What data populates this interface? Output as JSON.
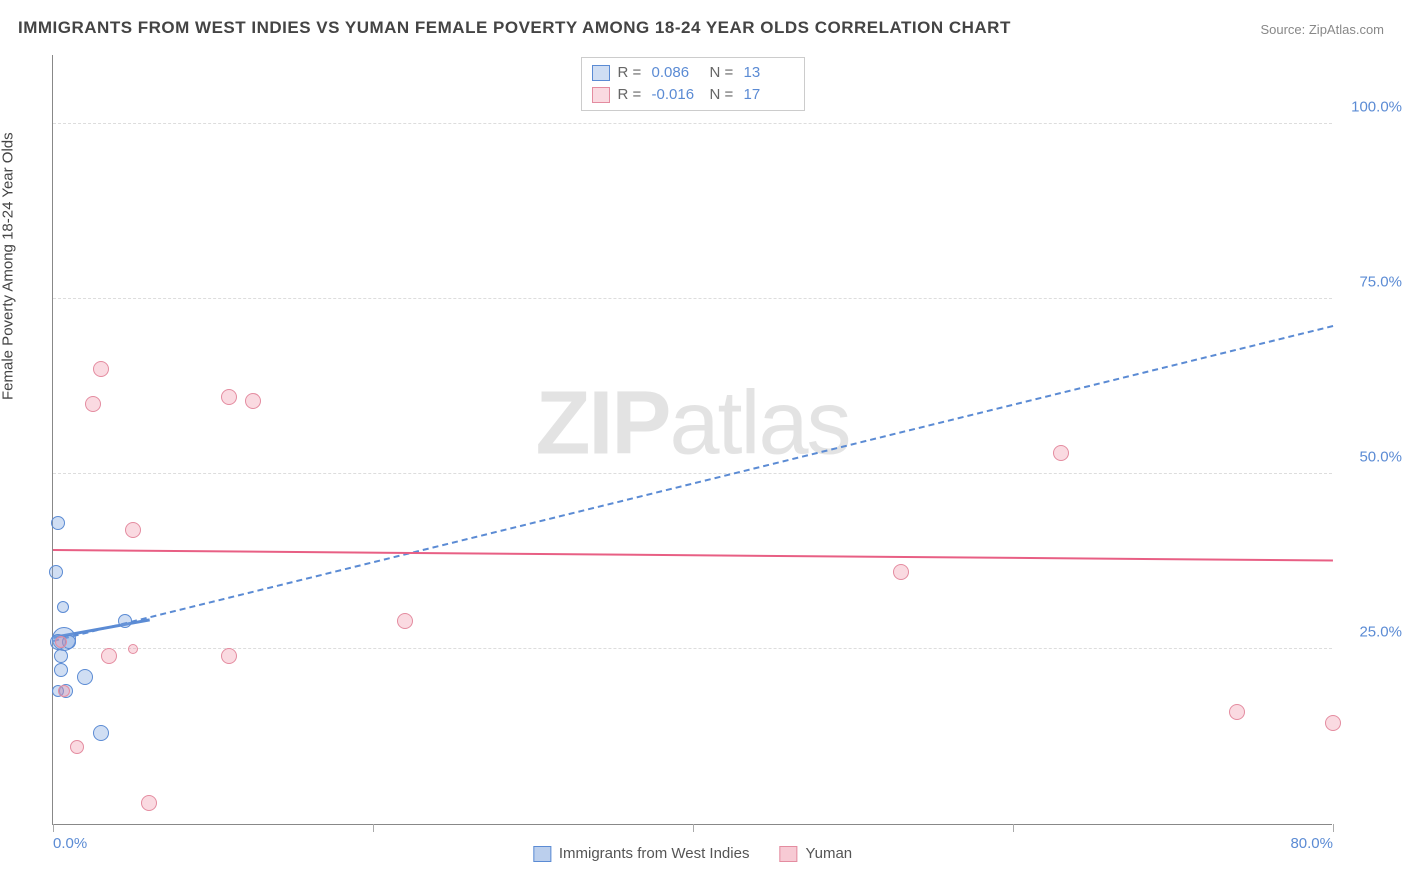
{
  "title": "IMMIGRANTS FROM WEST INDIES VS YUMAN FEMALE POVERTY AMONG 18-24 YEAR OLDS CORRELATION CHART",
  "source": "Source: ZipAtlas.com",
  "y_axis_label": "Female Poverty Among 18-24 Year Olds",
  "watermark_bold": "ZIP",
  "watermark_rest": "atlas",
  "chart": {
    "type": "scatter-correlation",
    "xlim": [
      0,
      80
    ],
    "ylim": [
      0,
      110
    ],
    "x_ticks": [
      0,
      20,
      40,
      60,
      80
    ],
    "x_tick_labels": [
      "0.0%",
      "",
      "",
      "",
      "80.0%"
    ],
    "y_ticks": [
      25,
      50,
      75,
      100
    ],
    "y_tick_labels": [
      "25.0%",
      "50.0%",
      "75.0%",
      "100.0%"
    ],
    "grid_color": "#dddddd",
    "axis_color": "#888888",
    "tick_label_color": "#5b8bd4",
    "background_color": "#ffffff",
    "series": [
      {
        "name": "Immigrants from West Indies",
        "fill": "rgba(120,160,220,0.35)",
        "stroke": "#5b8bd4",
        "r_value": "0.086",
        "n_value": "13",
        "trend": {
          "y_at_x0": 26,
          "y_at_x80": 71,
          "dashed": true,
          "solid_segment": {
            "x0": 0,
            "y0": 26.5,
            "x1": 6,
            "y1": 29
          },
          "color": "#5b8bd4",
          "width": 2
        },
        "points": [
          {
            "x": 0.3,
            "y": 43,
            "r": 7
          },
          {
            "x": 0.2,
            "y": 36,
            "r": 7
          },
          {
            "x": 0.7,
            "y": 26.5,
            "r": 12
          },
          {
            "x": 0.3,
            "y": 26,
            "r": 8
          },
          {
            "x": 0.5,
            "y": 24,
            "r": 7
          },
          {
            "x": 0.5,
            "y": 22,
            "r": 7
          },
          {
            "x": 4.5,
            "y": 29,
            "r": 7
          },
          {
            "x": 2.0,
            "y": 21,
            "r": 8
          },
          {
            "x": 0.8,
            "y": 19,
            "r": 7
          },
          {
            "x": 0.3,
            "y": 19,
            "r": 6
          },
          {
            "x": 3.0,
            "y": 13,
            "r": 8
          },
          {
            "x": 1.0,
            "y": 26,
            "r": 7
          },
          {
            "x": 0.6,
            "y": 31,
            "r": 6
          }
        ]
      },
      {
        "name": "Yuman",
        "fill": "rgba(240,150,170,0.35)",
        "stroke": "#e48ca0",
        "r_value": "-0.016",
        "n_value": "17",
        "trend": {
          "y_at_x0": 39,
          "y_at_x80": 37.5,
          "dashed": false,
          "color": "#e85f84",
          "width": 2
        },
        "points": [
          {
            "x": 3,
            "y": 65,
            "r": 8
          },
          {
            "x": 2.5,
            "y": 60,
            "r": 8
          },
          {
            "x": 11,
            "y": 61,
            "r": 8
          },
          {
            "x": 12.5,
            "y": 60.5,
            "r": 8
          },
          {
            "x": 5,
            "y": 42,
            "r": 8
          },
          {
            "x": 63,
            "y": 53,
            "r": 8
          },
          {
            "x": 53,
            "y": 36,
            "r": 8
          },
          {
            "x": 22,
            "y": 29,
            "r": 8
          },
          {
            "x": 5,
            "y": 25,
            "r": 5
          },
          {
            "x": 3.5,
            "y": 24,
            "r": 8
          },
          {
            "x": 11,
            "y": 24,
            "r": 8
          },
          {
            "x": 0.7,
            "y": 19,
            "r": 6
          },
          {
            "x": 74,
            "y": 16,
            "r": 8
          },
          {
            "x": 80,
            "y": 14.5,
            "r": 8
          },
          {
            "x": 1.5,
            "y": 11,
            "r": 7
          },
          {
            "x": 6,
            "y": 3,
            "r": 8
          },
          {
            "x": 0.5,
            "y": 26,
            "r": 6
          }
        ]
      }
    ]
  },
  "legend_bottom": [
    {
      "label": "Immigrants from West Indies",
      "fill": "rgba(120,160,220,0.5)",
      "stroke": "#5b8bd4"
    },
    {
      "label": "Yuman",
      "fill": "rgba(240,150,170,0.5)",
      "stroke": "#e48ca0"
    }
  ]
}
